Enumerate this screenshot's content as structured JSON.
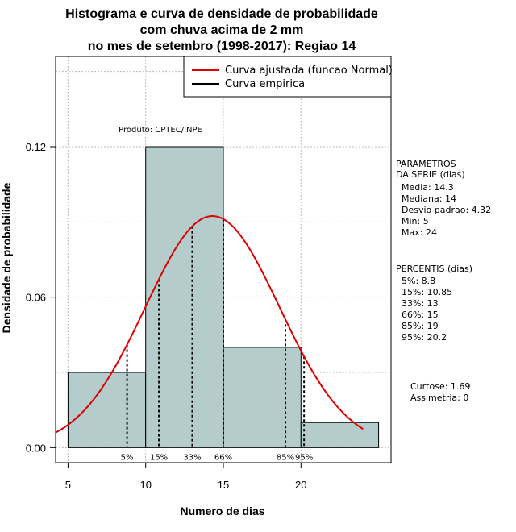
{
  "chart_data": {
    "type": "histogram",
    "title_lines": [
      "Histograma e curva de densidade de probabilidade",
      "com chuva acima de 2 mm",
      "no mes de setembro (1998-2017): Regiao 14"
    ],
    "xlabel": "Numero de dias",
    "ylabel": "Densidade de probabilidade",
    "xlim": [
      4.2,
      25.8
    ],
    "ylim": [
      -0.006,
      0.156
    ],
    "x_ticks": [
      5,
      10,
      15,
      20
    ],
    "y_ticks": [
      0.0,
      0.06,
      0.12
    ],
    "y_tick_labels": [
      "0.00",
      "0.06",
      "0.12"
    ],
    "grid": true,
    "bins": [
      {
        "start": 5,
        "end": 10,
        "density": 0.03
      },
      {
        "start": 10,
        "end": 15,
        "density": 0.12
      },
      {
        "start": 15,
        "end": 20,
        "density": 0.04
      },
      {
        "start": 20,
        "end": 25,
        "density": 0.01
      }
    ],
    "normal_curve": {
      "mean": 14.3,
      "sd": 4.32,
      "x_from": 4.2,
      "x_to": 24
    },
    "percentile_lines": [
      {
        "label": "5%",
        "x": 8.8
      },
      {
        "label": "15%",
        "x": 10.85
      },
      {
        "label": "33%",
        "x": 13
      },
      {
        "label": "66%",
        "x": 15
      },
      {
        "label": "85%",
        "x": 19
      },
      {
        "label": "95%",
        "x": 20.2
      }
    ],
    "legend": [
      {
        "label": "Curva ajustada (funcao Normal)",
        "color": "#dd0000"
      },
      {
        "label": "Curva empirica",
        "color": "#000000"
      }
    ],
    "legend_position": "top-right",
    "source_note": "Produto: CPTEC/INPE",
    "colors": {
      "bar_fill": "#b4cccc",
      "curve": "#dd0000",
      "grid": "#bbbbbb"
    }
  },
  "side_panel": {
    "params_header": [
      "PARAMETROS",
      "DA SERIE (dias)"
    ],
    "params": [
      "Media: 14.3",
      "Mediana: 14",
      "Desvio padrao: 4.32",
      "Min: 5",
      "Max: 24"
    ],
    "percentis_header": "PERCENTIS (dias)",
    "percentis": [
      "5%: 8.8",
      "15%: 10.85",
      "33%: 13",
      "66%: 15",
      "85%: 19",
      "95%: 20.2"
    ],
    "kurtosis": "Curtose: 1.69",
    "skewness": "Assimetria: 0"
  }
}
